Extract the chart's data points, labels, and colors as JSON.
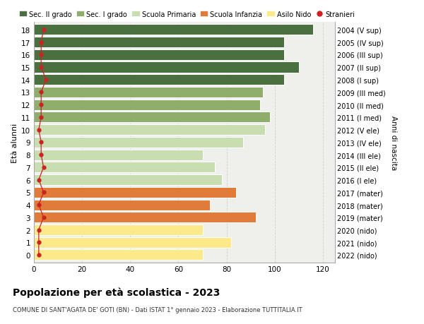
{
  "ages": [
    0,
    1,
    2,
    3,
    4,
    5,
    6,
    7,
    8,
    9,
    10,
    11,
    12,
    13,
    14,
    15,
    16,
    17,
    18
  ],
  "right_labels": [
    "2022 (nido)",
    "2021 (nido)",
    "2020 (nido)",
    "2019 (mater)",
    "2018 (mater)",
    "2017 (mater)",
    "2016 (I ele)",
    "2015 (II ele)",
    "2014 (III ele)",
    "2013 (IV ele)",
    "2012 (V ele)",
    "2011 (I med)",
    "2010 (II med)",
    "2009 (III med)",
    "2008 (I sup)",
    "2007 (II sup)",
    "2006 (III sup)",
    "2005 (IV sup)",
    "2004 (V sup)"
  ],
  "bar_values": [
    70,
    82,
    70,
    92,
    73,
    84,
    78,
    75,
    70,
    87,
    96,
    98,
    94,
    95,
    104,
    110,
    104,
    104,
    116
  ],
  "bar_colors": [
    "#fce98a",
    "#fce98a",
    "#fce98a",
    "#e07b39",
    "#e07b39",
    "#e07b39",
    "#c8ddb0",
    "#c8ddb0",
    "#c8ddb0",
    "#c8ddb0",
    "#c8ddb0",
    "#8fad6b",
    "#8fad6b",
    "#8fad6b",
    "#4a7040",
    "#4a7040",
    "#4a7040",
    "#4a7040",
    "#4a7040"
  ],
  "stranieri_values": [
    2,
    2,
    2,
    4,
    2,
    4,
    2,
    4,
    3,
    3,
    2,
    3,
    3,
    3,
    5,
    3,
    3,
    3,
    4
  ],
  "legend_labels": [
    "Sec. II grado",
    "Sec. I grado",
    "Scuola Primaria",
    "Scuola Infanzia",
    "Asilo Nido",
    "Stranieri"
  ],
  "legend_colors": [
    "#4a7040",
    "#8fad6b",
    "#c8ddb0",
    "#e07b39",
    "#fce98a",
    "#cc2222"
  ],
  "ylabel": "Età alunni",
  "right_ylabel": "Anni di nascita",
  "title": "Popolazione per età scolastica - 2023",
  "subtitle": "COMUNE DI SANT'AGATA DE' GOTI (BN) - Dati ISTAT 1° gennaio 2023 - Elaborazione TUTTITALIA.IT",
  "xlim": [
    0,
    125
  ],
  "xticks": [
    0,
    20,
    40,
    60,
    80,
    100,
    120
  ],
  "background_color": "#ffffff",
  "bar_background": "#efefeb",
  "grid_color": "#cccccc"
}
